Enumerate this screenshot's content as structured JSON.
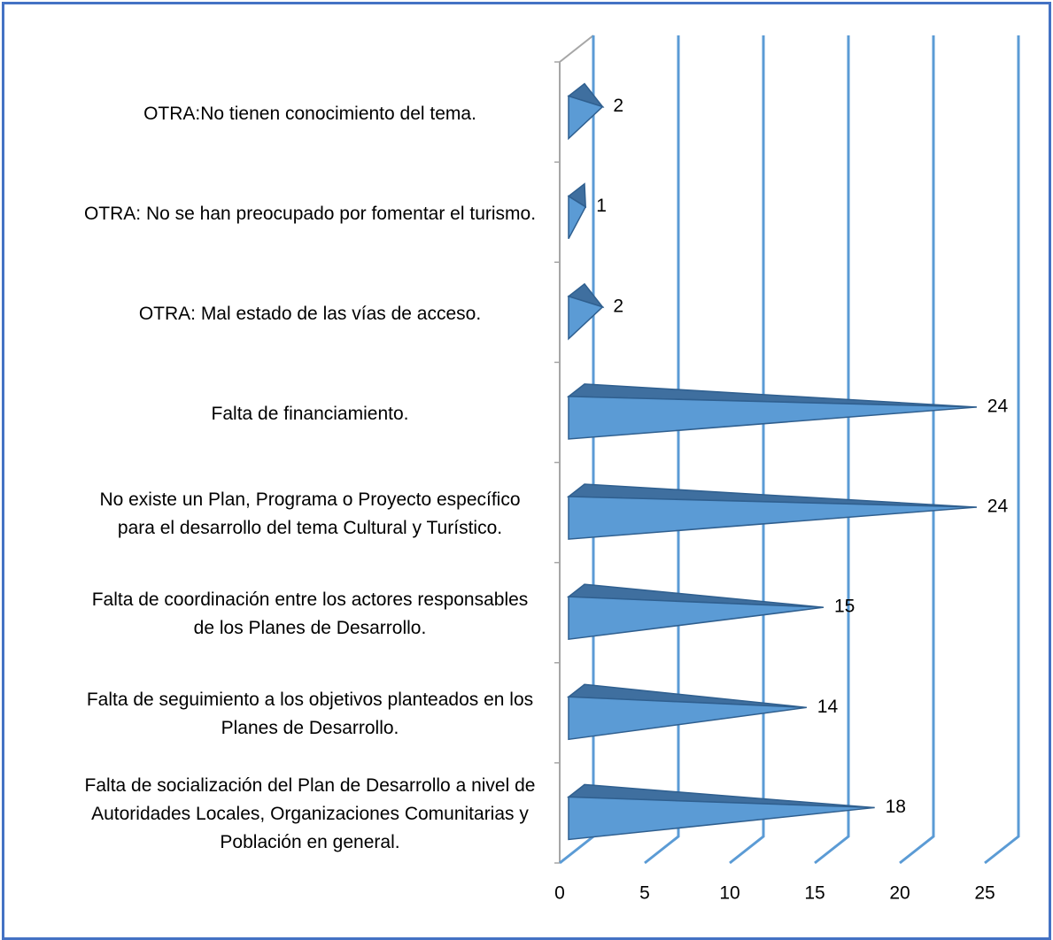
{
  "chart_data": {
    "type": "bar3d-cone",
    "categories": [
      "OTRA:No tienen conocimiento del tema.",
      "OTRA: No se han preocupado por  fomentar el turismo.",
      "OTRA: Mal estado de las vías de acceso.",
      "Falta de financiamiento.",
      "No existe un Plan, Programa o Proyecto específico para el desarrollo del tema Cultural y Turístico.",
      "Falta de coordinación entre los actores responsables de los Planes de Desarrollo.",
      "Falta de seguimiento a los objetivos planteados en los Planes de Desarrollo.",
      "Falta de socialización del Plan de Desarrollo a nivel de Autoridades Locales, Organizaciones Comunitarias y Población en general."
    ],
    "values": [
      2,
      1,
      2,
      24,
      24,
      15,
      14,
      18
    ],
    "color": "#5b9bd5",
    "xlim": [
      0,
      25
    ],
    "xticks": [
      0,
      5,
      10,
      15,
      20,
      25
    ],
    "grid": true
  }
}
